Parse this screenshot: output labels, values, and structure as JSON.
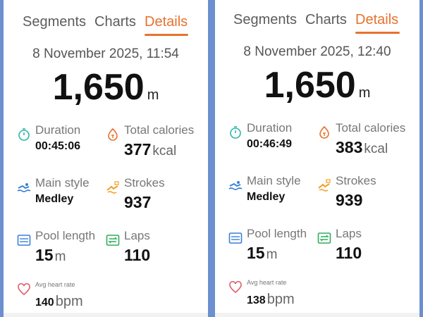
{
  "colors": {
    "background": "#6b8fcf",
    "accent": "#e8722e",
    "duration_icon": "#2fb8a8",
    "calories_icon": "#e8722e",
    "swim_icon": "#3a7fd5",
    "strokes_icon": "#f0a020",
    "pool_icon": "#3a7fd5",
    "laps_icon": "#2fae5a",
    "heart_icon": "#e05a6a"
  },
  "tabs": {
    "segments": "Segments",
    "charts": "Charts",
    "details": "Details",
    "active": "details"
  },
  "labels": {
    "duration": "Duration",
    "calories": "Total calories",
    "main_style": "Main style",
    "strokes": "Strokes",
    "pool_length": "Pool length",
    "laps": "Laps",
    "avg_heart_rate": "Avg heart rate",
    "distance_unit": "m",
    "calories_unit": "kcal",
    "pool_unit": "m",
    "heart_unit": "bpm"
  },
  "icons": {
    "duration": "stopwatch-icon",
    "calories": "flame-icon",
    "main_style": "swimmer-icon",
    "strokes": "stroke-counter-icon",
    "pool_length": "pool-icon",
    "laps": "laps-icon",
    "heart_rate": "heart-icon"
  },
  "left": {
    "date": "8 November 2025, 11:54",
    "distance": "1,650",
    "duration": "00:45:06",
    "calories": "377",
    "main_style": "Medley",
    "strokes": "937",
    "pool_length": "15",
    "laps": "110",
    "avg_heart_rate": "140"
  },
  "right": {
    "date": "8 November 2025, 12:40",
    "distance": "1,650",
    "duration": "00:46:49",
    "calories": "383",
    "main_style": "Medley",
    "strokes": "939",
    "pool_length": "15",
    "laps": "110",
    "avg_heart_rate": "138"
  }
}
